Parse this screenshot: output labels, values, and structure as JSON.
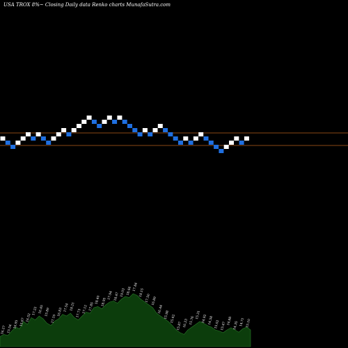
{
  "chart_data": {
    "type": "renko",
    "title": "USA TROX  8%~  Closing Daily data  Renko  charts MunafaSutra.com",
    "colors": {
      "background": "#000000",
      "up_brick": "#ffffff",
      "down_brick": "#1f6fe0",
      "reference_line": "#b8621b",
      "volume_fill": "#0c3d0c",
      "volume_stroke": "#2a7a2a",
      "label": "#ffffff"
    },
    "reference_levels": [
      {
        "name": "upper",
        "level": 11
      },
      {
        "name": "lower",
        "level": 8
      }
    ],
    "bricks": [
      {
        "level": 9,
        "dir": "up"
      },
      {
        "level": 8,
        "dir": "down"
      },
      {
        "level": 7,
        "dir": "down"
      },
      {
        "level": 8,
        "dir": "up"
      },
      {
        "level": 9,
        "dir": "up"
      },
      {
        "level": 10,
        "dir": "up"
      },
      {
        "level": 9,
        "dir": "down"
      },
      {
        "level": 10,
        "dir": "up"
      },
      {
        "level": 9,
        "dir": "down"
      },
      {
        "level": 8,
        "dir": "down"
      },
      {
        "level": 9,
        "dir": "up"
      },
      {
        "level": 10,
        "dir": "up"
      },
      {
        "level": 11,
        "dir": "up"
      },
      {
        "level": 10,
        "dir": "down"
      },
      {
        "level": 11,
        "dir": "up"
      },
      {
        "level": 12,
        "dir": "up"
      },
      {
        "level": 13,
        "dir": "up"
      },
      {
        "level": 14,
        "dir": "up"
      },
      {
        "level": 13,
        "dir": "down"
      },
      {
        "level": 12,
        "dir": "down"
      },
      {
        "level": 13,
        "dir": "up"
      },
      {
        "level": 14,
        "dir": "up"
      },
      {
        "level": 13,
        "dir": "down"
      },
      {
        "level": 14,
        "dir": "up"
      },
      {
        "level": 13,
        "dir": "down"
      },
      {
        "level": 12,
        "dir": "down"
      },
      {
        "level": 11,
        "dir": "down"
      },
      {
        "level": 10,
        "dir": "down"
      },
      {
        "level": 11,
        "dir": "up"
      },
      {
        "level": 10,
        "dir": "down"
      },
      {
        "level": 11,
        "dir": "up"
      },
      {
        "level": 12,
        "dir": "up"
      },
      {
        "level": 11,
        "dir": "down"
      },
      {
        "level": 10,
        "dir": "down"
      },
      {
        "level": 9,
        "dir": "down"
      },
      {
        "level": 8,
        "dir": "down"
      },
      {
        "level": 9,
        "dir": "up"
      },
      {
        "level": 8,
        "dir": "down"
      },
      {
        "level": 9,
        "dir": "up"
      },
      {
        "level": 10,
        "dir": "up"
      },
      {
        "level": 9,
        "dir": "down"
      },
      {
        "level": 8,
        "dir": "down"
      },
      {
        "level": 7,
        "dir": "down"
      },
      {
        "level": 6,
        "dir": "down"
      },
      {
        "level": 7,
        "dir": "up"
      },
      {
        "level": 8,
        "dir": "up"
      },
      {
        "level": 9,
        "dir": "up"
      },
      {
        "level": 8,
        "dir": "down"
      },
      {
        "level": 9,
        "dir": "up"
      }
    ],
    "volume_profile": [
      0.18,
      0.22,
      0.2,
      0.28,
      0.35,
      0.32,
      0.45,
      0.4,
      0.52,
      0.48,
      0.55,
      0.5,
      0.42,
      0.38,
      0.46,
      0.5,
      0.58,
      0.55,
      0.6,
      0.52,
      0.48,
      0.55,
      0.62,
      0.6,
      0.7,
      0.72,
      0.68,
      0.75,
      0.8,
      0.82,
      0.78,
      0.85,
      0.9,
      0.88,
      0.95,
      0.92,
      0.85,
      0.8,
      0.75,
      0.7,
      0.6,
      0.55,
      0.5,
      0.45,
      0.38,
      0.3,
      0.25,
      0.22,
      0.3,
      0.35,
      0.4,
      0.45,
      0.42,
      0.38,
      0.35,
      0.3,
      0.28,
      0.25,
      0.3,
      0.34,
      0.3,
      0.26,
      0.32,
      0.35,
      0.3
    ],
    "volume_labels": [
      "16.27",
      "15.54",
      "16.95",
      "15.67",
      "16.52",
      "17.22",
      "16.45",
      "15.89",
      "17.10",
      "16.83",
      "17.54",
      "18.21",
      "17.73",
      "17.12",
      "17.85",
      "18.40",
      "18.95",
      "17.94",
      "18.47",
      "19.03",
      "18.66",
      "17.84",
      "18.15",
      "17.50",
      "16.89",
      "16.44",
      "15.98",
      "15.42",
      "15.87",
      "16.23",
      "15.76",
      "15.31",
      "14.92",
      "14.58",
      "15.02",
      "15.47",
      "14.88",
      "14.35",
      "14.71",
      "15.10"
    ]
  }
}
